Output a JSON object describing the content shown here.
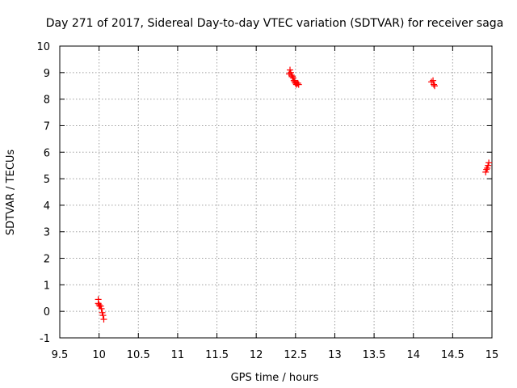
{
  "chart_data": {
    "type": "scatter",
    "title": "Day 271 of 2017, Sidereal Day-to-day VTEC variation (SDTVAR) for receiver saga",
    "xlabel": "GPS time / hours",
    "ylabel": "SDTVAR / TECUs",
    "xlim": [
      9.5,
      15
    ],
    "ylim": [
      -1,
      10
    ],
    "xticks": [
      9.5,
      10,
      10.5,
      11,
      11.5,
      12,
      12.5,
      13,
      13.5,
      14,
      14.5,
      15
    ],
    "xtick_labels": [
      "9.5",
      "10",
      "10.5",
      "11",
      "11.5",
      "12",
      "12.5",
      "13",
      "13.5",
      "14",
      "14.5",
      "15"
    ],
    "yticks": [
      -1,
      0,
      1,
      2,
      3,
      4,
      5,
      6,
      7,
      8,
      9,
      10
    ],
    "ytick_labels": [
      "-1",
      "0",
      "1",
      "2",
      "3",
      "4",
      "5",
      "6",
      "7",
      "8",
      "9",
      "10"
    ],
    "grid": true,
    "marker": "+",
    "color": "#ff0000",
    "series": [
      {
        "name": "SDTVAR",
        "points": [
          [
            9.99,
            0.45
          ],
          [
            9.99,
            0.3
          ],
          [
            10.0,
            0.25
          ],
          [
            10.01,
            0.2
          ],
          [
            10.02,
            0.2
          ],
          [
            10.03,
            0.1
          ],
          [
            10.04,
            -0.05
          ],
          [
            10.05,
            -0.15
          ],
          [
            10.06,
            -0.3
          ],
          [
            12.42,
            8.95
          ],
          [
            12.43,
            9.1
          ],
          [
            12.44,
            9.0
          ],
          [
            12.45,
            8.9
          ],
          [
            12.46,
            8.85
          ],
          [
            12.47,
            8.8
          ],
          [
            12.48,
            8.7
          ],
          [
            12.49,
            8.65
          ],
          [
            12.5,
            8.6
          ],
          [
            12.51,
            8.55
          ],
          [
            12.52,
            8.6
          ],
          [
            12.53,
            8.6
          ],
          [
            12.54,
            8.55
          ],
          [
            14.23,
            8.65
          ],
          [
            14.25,
            8.7
          ],
          [
            14.26,
            8.55
          ],
          [
            14.27,
            8.5
          ],
          [
            14.92,
            5.25
          ],
          [
            14.93,
            5.35
          ],
          [
            14.94,
            5.4
          ],
          [
            14.95,
            5.5
          ],
          [
            14.96,
            5.6
          ]
        ]
      }
    ]
  }
}
